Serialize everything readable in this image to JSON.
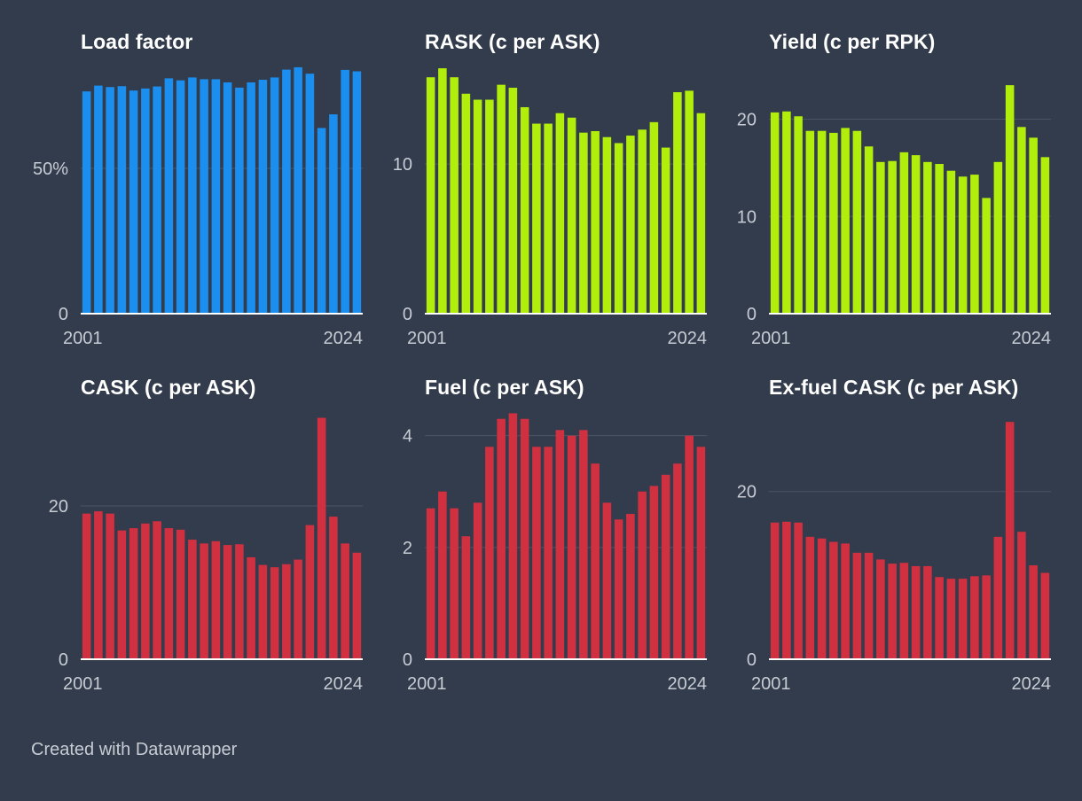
{
  "footer": {
    "credit": "Created with Datawrapper"
  },
  "colors": {
    "blue": "#1a8ff0",
    "green": "#b2ee0c",
    "red": "#d13040",
    "gridline": "#4a5566",
    "baseline": "#ffffff"
  },
  "chart_data": [
    {
      "id": "load-factor",
      "type": "bar",
      "title": "Load factor",
      "color": "#1a8ff0",
      "x_first_label": "2001",
      "x_last_label": "2024",
      "ylim": [
        0,
        86
      ],
      "yticks": [
        {
          "value": 0,
          "label": "0"
        },
        {
          "value": 50,
          "label": "50%"
        }
      ],
      "values": [
        76.5,
        78.5,
        78,
        78.3,
        76.8,
        77.5,
        78.2,
        81,
        80.3,
        81.3,
        80.7,
        80.7,
        79.6,
        77.8,
        79.6,
        80.5,
        81.3,
        84,
        84.8,
        82.6,
        63.9,
        68.6,
        83.9,
        83.4
      ]
    },
    {
      "id": "rask",
      "type": "bar",
      "title": "RASK (c per ASK)",
      "color": "#b2ee0c",
      "x_first_label": "2001",
      "x_last_label": "2024",
      "ylim": [
        0,
        16.7
      ],
      "yticks": [
        {
          "value": 0,
          "label": "0"
        },
        {
          "value": 10,
          "label": "10"
        }
      ],
      "values": [
        15.8,
        16.4,
        15.8,
        14.7,
        14.3,
        14.3,
        15.3,
        15.1,
        13.8,
        12.7,
        12.7,
        13.4,
        13.1,
        12.1,
        12.2,
        11.8,
        11.4,
        11.9,
        12.3,
        12.8,
        11.1,
        14.8,
        14.9,
        13.4
      ]
    },
    {
      "id": "yield",
      "type": "bar",
      "title": "Yield (c per RPK)",
      "color": "#b2ee0c",
      "x_first_label": "2001",
      "x_last_label": "2024",
      "ylim": [
        0,
        25.7
      ],
      "yticks": [
        {
          "value": 0,
          "label": "0"
        },
        {
          "value": 10,
          "label": "10"
        },
        {
          "value": 20,
          "label": "20"
        }
      ],
      "values": [
        20.7,
        20.8,
        20.3,
        18.8,
        18.8,
        18.6,
        19.1,
        18.8,
        17.2,
        15.6,
        15.7,
        16.6,
        16.3,
        15.6,
        15.4,
        14.7,
        14.1,
        14.3,
        11.9,
        15.6,
        23.5,
        19.2,
        18.1,
        16.1
      ]
    },
    {
      "id": "cask",
      "type": "bar",
      "title": "CASK (c per ASK)",
      "color": "#d13040",
      "x_first_label": "2001",
      "x_last_label": "2024",
      "ylim": [
        0,
        32.6
      ],
      "yticks": [
        {
          "value": 0,
          "label": "0"
        },
        {
          "value": 20,
          "label": "20"
        }
      ],
      "values": [
        19,
        19.3,
        19,
        16.8,
        17.1,
        17.7,
        18,
        17.1,
        16.9,
        15.6,
        15.1,
        15.4,
        14.9,
        15,
        13.3,
        12.3,
        12,
        12.4,
        13,
        17.5,
        31.5,
        18.6,
        15.1,
        13.9
      ]
    },
    {
      "id": "fuel",
      "type": "bar",
      "title": "Fuel (c per ASK)",
      "color": "#d13040",
      "x_first_label": "2001",
      "x_last_label": "2024",
      "ylim": [
        0,
        4.47
      ],
      "yticks": [
        {
          "value": 0,
          "label": "0"
        },
        {
          "value": 2,
          "label": "2"
        },
        {
          "value": 4,
          "label": "4"
        }
      ],
      "values": [
        2.7,
        3,
        2.7,
        2.2,
        2.8,
        3.8,
        4.3,
        4.4,
        4.3,
        3.8,
        3.8,
        4.1,
        4,
        4.1,
        3.5,
        2.8,
        2.5,
        2.6,
        3,
        3.1,
        3.3,
        3.5,
        4,
        3.8
      ]
    },
    {
      "id": "ex-fuel-cask",
      "type": "bar",
      "title": "Ex-fuel CASK (c per ASK)",
      "color": "#d13040",
      "x_first_label": "2001",
      "x_last_label": "2024",
      "ylim": [
        0,
        29.8
      ],
      "yticks": [
        {
          "value": 0,
          "label": "0"
        },
        {
          "value": 20,
          "label": "20"
        }
      ],
      "values": [
        16.3,
        16.4,
        16.3,
        14.6,
        14.4,
        14,
        13.8,
        12.7,
        12.7,
        11.9,
        11.4,
        11.5,
        11.1,
        11.1,
        9.8,
        9.6,
        9.6,
        9.9,
        10,
        14.6,
        28.3,
        15.2,
        11.2,
        10.3
      ]
    }
  ]
}
